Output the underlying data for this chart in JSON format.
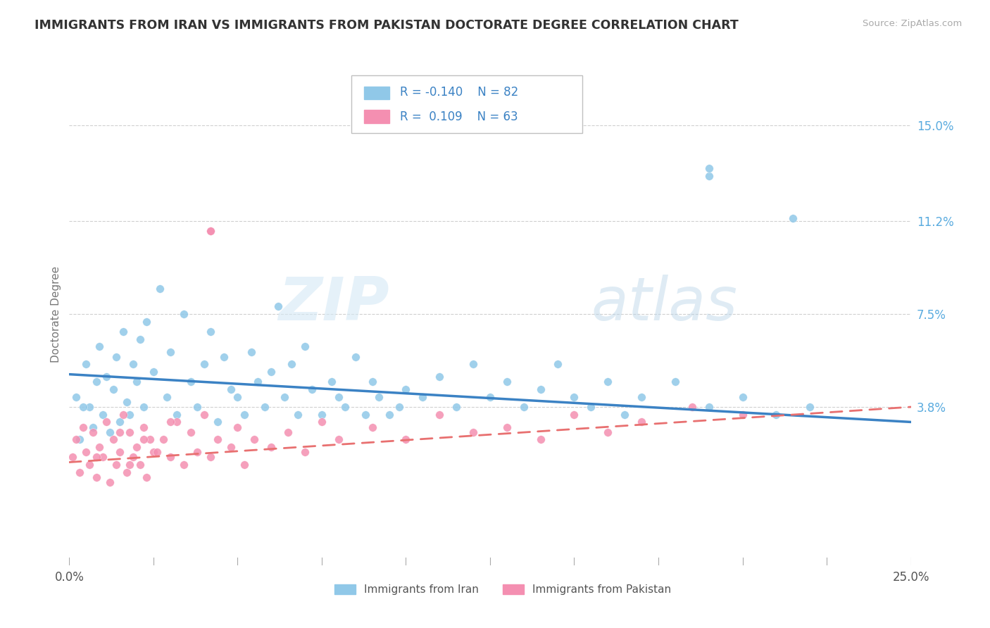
{
  "title": "IMMIGRANTS FROM IRAN VS IMMIGRANTS FROM PAKISTAN DOCTORATE DEGREE CORRELATION CHART",
  "source_text": "Source: ZipAtlas.com",
  "ylabel": "Doctorate Degree",
  "y_tick_labels": [
    "3.8%",
    "7.5%",
    "11.2%",
    "15.0%"
  ],
  "y_tick_values": [
    0.038,
    0.075,
    0.112,
    0.15
  ],
  "x_min": 0.0,
  "x_max": 0.25,
  "y_min": -0.025,
  "y_max": 0.175,
  "legend_iran_R": "-0.140",
  "legend_iran_N": "82",
  "legend_pak_R": "0.109",
  "legend_pak_N": "63",
  "iran_color": "#90c8e8",
  "pak_color": "#f48fb1",
  "iran_line_color": "#3b82c4",
  "pak_line_color": "#e87070",
  "watermark_zip": "ZIP",
  "watermark_atlas": "atlas",
  "bottom_legend_iran": "Immigrants from Iran",
  "bottom_legend_pak": "Immigrants from Pakistan"
}
